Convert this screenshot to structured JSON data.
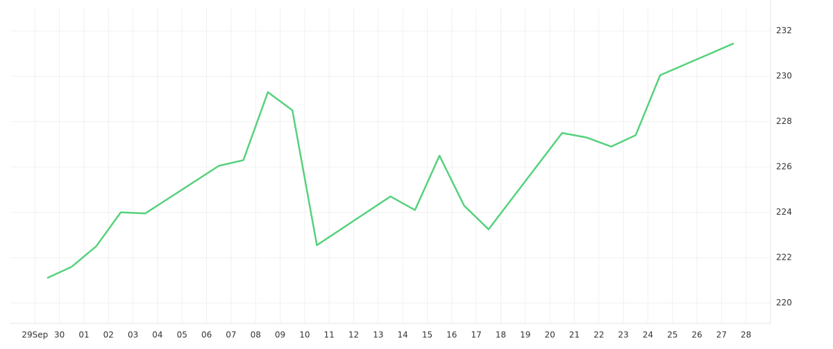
{
  "chart_data": {
    "type": "line",
    "x": [
      0.5,
      1.5,
      2.5,
      3.5,
      4.5,
      7.5,
      8.5,
      9.5,
      10.5,
      11.5,
      14.5,
      15.5,
      16.5,
      17.5,
      18.5,
      21.5,
      22.5,
      23.5,
      24.5,
      25.5,
      28.5
    ],
    "series": [
      {
        "color": "#55d17c",
        "values": [
          221.1,
          221.6,
          222.5,
          224.0,
          223.95,
          226.05,
          226.3,
          229.3,
          228.5,
          222.55,
          224.7,
          224.1,
          226.5,
          224.3,
          223.25,
          227.5,
          227.3,
          226.9,
          227.4,
          230.05,
          231.45
        ]
      }
    ],
    "xlim": [
      -1,
      30
    ],
    "xticks": [
      {
        "value": 0,
        "label": "29Sep"
      },
      {
        "value": 1,
        "label": "30"
      },
      {
        "value": 2,
        "label": "01"
      },
      {
        "value": 3,
        "label": "02"
      },
      {
        "value": 4,
        "label": "03"
      },
      {
        "value": 5,
        "label": "04"
      },
      {
        "value": 6,
        "label": "05"
      },
      {
        "value": 7,
        "label": "06"
      },
      {
        "value": 8,
        "label": "07"
      },
      {
        "value": 9,
        "label": "08"
      },
      {
        "value": 10,
        "label": "09"
      },
      {
        "value": 11,
        "label": "10"
      },
      {
        "value": 12,
        "label": "11"
      },
      {
        "value": 13,
        "label": "12"
      },
      {
        "value": 14,
        "label": "13"
      },
      {
        "value": 15,
        "label": "14"
      },
      {
        "value": 16,
        "label": "15"
      },
      {
        "value": 17,
        "label": "16"
      },
      {
        "value": 18,
        "label": "17"
      },
      {
        "value": 19,
        "label": "18"
      },
      {
        "value": 20,
        "label": "19"
      },
      {
        "value": 21,
        "label": "20"
      },
      {
        "value": 22,
        "label": "21"
      },
      {
        "value": 23,
        "label": "22"
      },
      {
        "value": 24,
        "label": "23"
      },
      {
        "value": 25,
        "label": "24"
      },
      {
        "value": 26,
        "label": "25"
      },
      {
        "value": 27,
        "label": "26"
      },
      {
        "value": 28,
        "label": "27"
      },
      {
        "value": 29,
        "label": "28"
      }
    ],
    "ylim": [
      219.1,
      233
    ],
    "yticks": [
      220,
      222,
      224,
      226,
      228,
      230,
      232
    ],
    "grid": true
  }
}
